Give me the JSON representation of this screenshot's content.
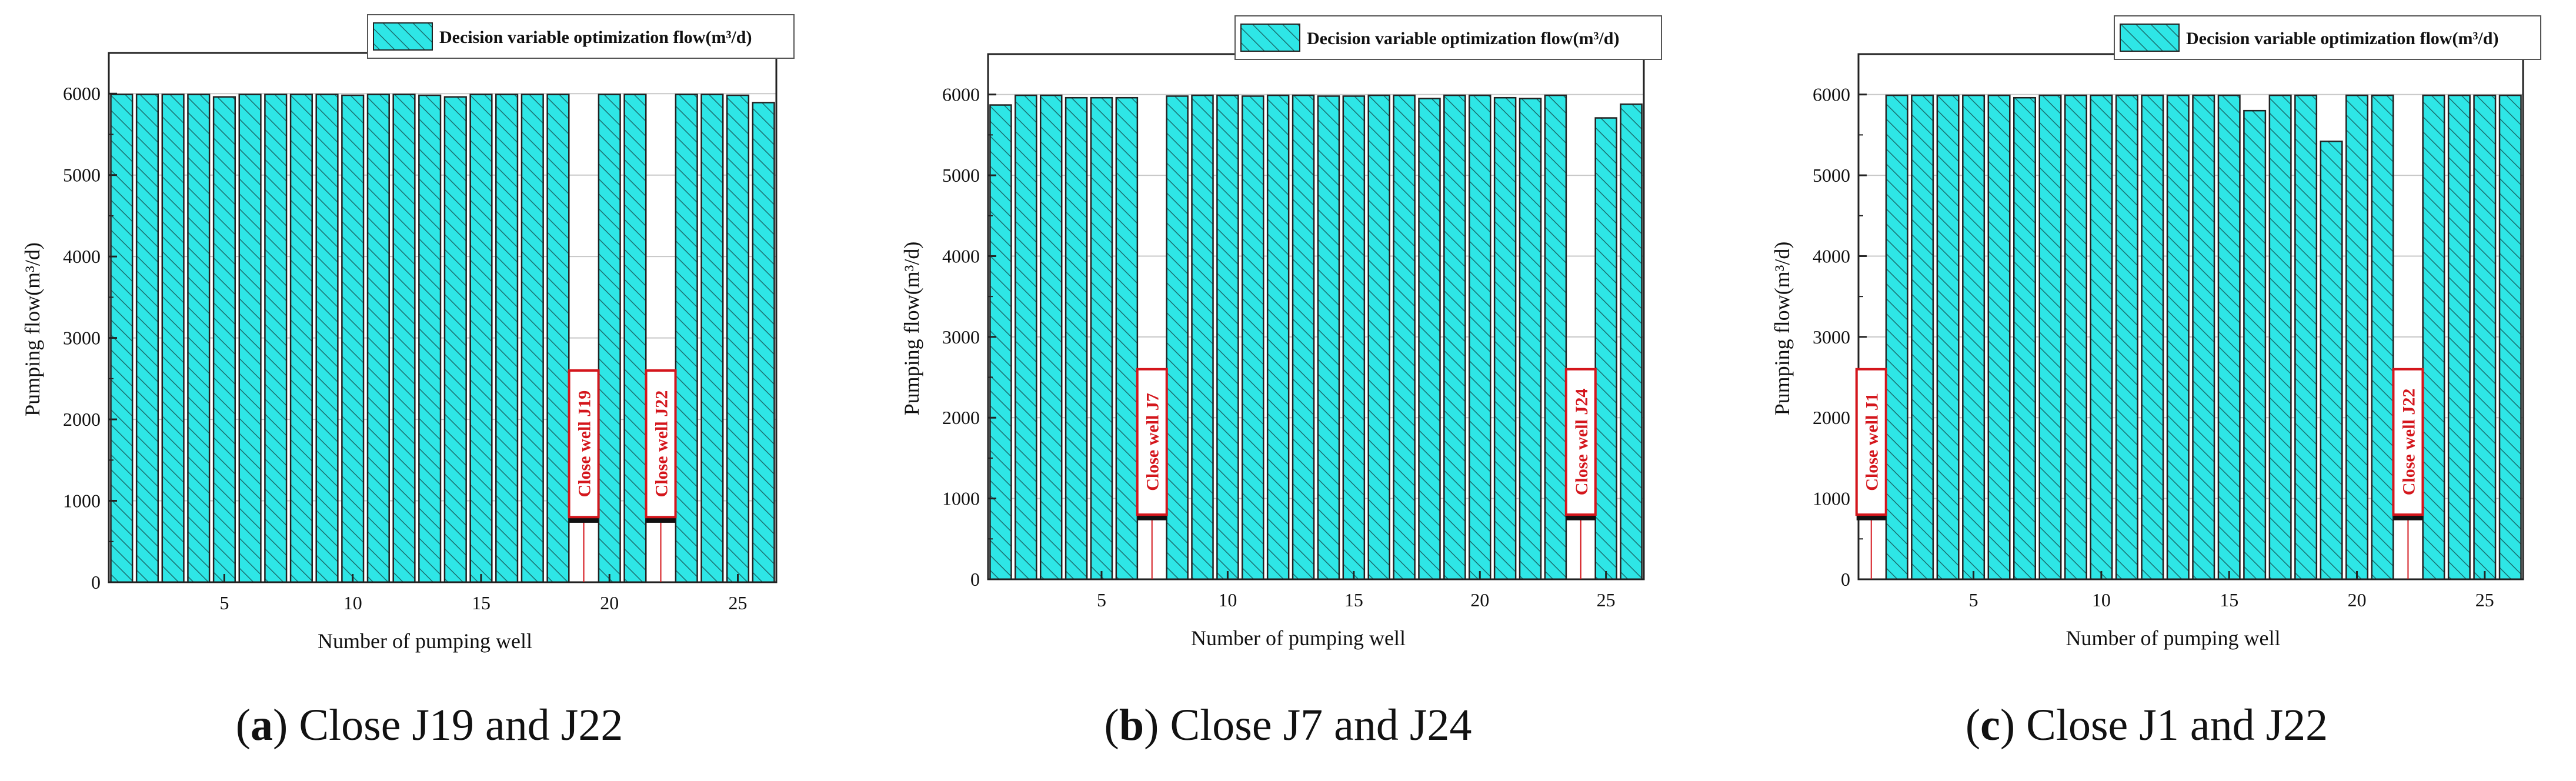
{
  "colors": {
    "bar_fill": "#2ee6e6",
    "hatch": "#1a6f70",
    "frame": "#222222",
    "grid": "#c8c8c8",
    "annotation": "#d4161c"
  },
  "chart_data": [
    {
      "type": "bar",
      "caption_letter": "a",
      "caption_text": "Close J19 and J22",
      "legend": "Decision variable optimization flow(m³/d)",
      "xlabel": "Number of pumping well",
      "ylabel": "Pumping flow(m³/d)",
      "ylim": [
        0,
        6500
      ],
      "yticks": [
        0,
        1000,
        2000,
        3000,
        4000,
        5000,
        6000
      ],
      "xticks": [
        5,
        10,
        15,
        20,
        25
      ],
      "grid": "horizontal",
      "legend_position": "top-right",
      "x": [
        1,
        2,
        3,
        4,
        5,
        6,
        7,
        8,
        9,
        10,
        11,
        12,
        13,
        14,
        15,
        16,
        17,
        18,
        19,
        20,
        21,
        22,
        23,
        24,
        25,
        26
      ],
      "values": [
        5990,
        5990,
        5990,
        5990,
        5960,
        5990,
        5990,
        5990,
        5990,
        5980,
        5990,
        5990,
        5980,
        5960,
        5990,
        5990,
        5990,
        5990,
        0,
        5990,
        5990,
        0,
        5990,
        5990,
        5980,
        5890
      ],
      "annotations": [
        {
          "well": 19,
          "text": "Close well J19"
        },
        {
          "well": 22,
          "text": "Close well J22"
        }
      ]
    },
    {
      "type": "bar",
      "caption_letter": "b",
      "caption_text": "Close J7 and J24",
      "legend": "Decision variable optimization flow(m³/d)",
      "xlabel": "Number of pumping well",
      "ylabel": "Pumping flow(m³/d)",
      "ylim": [
        0,
        6500
      ],
      "yticks": [
        0,
        1000,
        2000,
        3000,
        4000,
        5000,
        6000
      ],
      "xticks": [
        5,
        10,
        15,
        20,
        25
      ],
      "grid": "horizontal",
      "legend_position": "top-right",
      "x": [
        1,
        2,
        3,
        4,
        5,
        6,
        7,
        8,
        9,
        10,
        11,
        12,
        13,
        14,
        15,
        16,
        17,
        18,
        19,
        20,
        21,
        22,
        23,
        24,
        25,
        26
      ],
      "values": [
        5870,
        5990,
        5990,
        5960,
        5960,
        5960,
        0,
        5980,
        5990,
        5990,
        5980,
        5990,
        5990,
        5980,
        5980,
        5990,
        5990,
        5950,
        5990,
        5990,
        5960,
        5950,
        5990,
        0,
        5710,
        5880
      ],
      "annotations": [
        {
          "well": 7,
          "text": "Close well J7"
        },
        {
          "well": 24,
          "text": "Close well J24"
        }
      ]
    },
    {
      "type": "bar",
      "caption_letter": "c",
      "caption_text": "Close J1 and J22",
      "legend": "Decision variable optimization flow(m³/d)",
      "xlabel": "Number of pumping well",
      "ylabel": "Pumping flow(m³/d)",
      "ylim": [
        0,
        6500
      ],
      "yticks": [
        0,
        1000,
        2000,
        3000,
        4000,
        5000,
        6000
      ],
      "xticks": [
        5,
        10,
        15,
        20,
        25
      ],
      "grid": "horizontal",
      "legend_position": "top-right",
      "x": [
        1,
        2,
        3,
        4,
        5,
        6,
        7,
        8,
        9,
        10,
        11,
        12,
        13,
        14,
        15,
        16,
        17,
        18,
        19,
        20,
        21,
        22,
        23,
        24,
        25,
        26
      ],
      "values": [
        0,
        5990,
        5990,
        5990,
        5990,
        5990,
        5960,
        5990,
        5990,
        5990,
        5990,
        5990,
        5990,
        5990,
        5990,
        5800,
        5990,
        5990,
        5420,
        5990,
        5990,
        0,
        5990,
        5990,
        5990,
        5990
      ],
      "annotations": [
        {
          "well": 1,
          "text": "Close well J1"
        },
        {
          "well": 22,
          "text": "Close well J22"
        }
      ]
    }
  ]
}
